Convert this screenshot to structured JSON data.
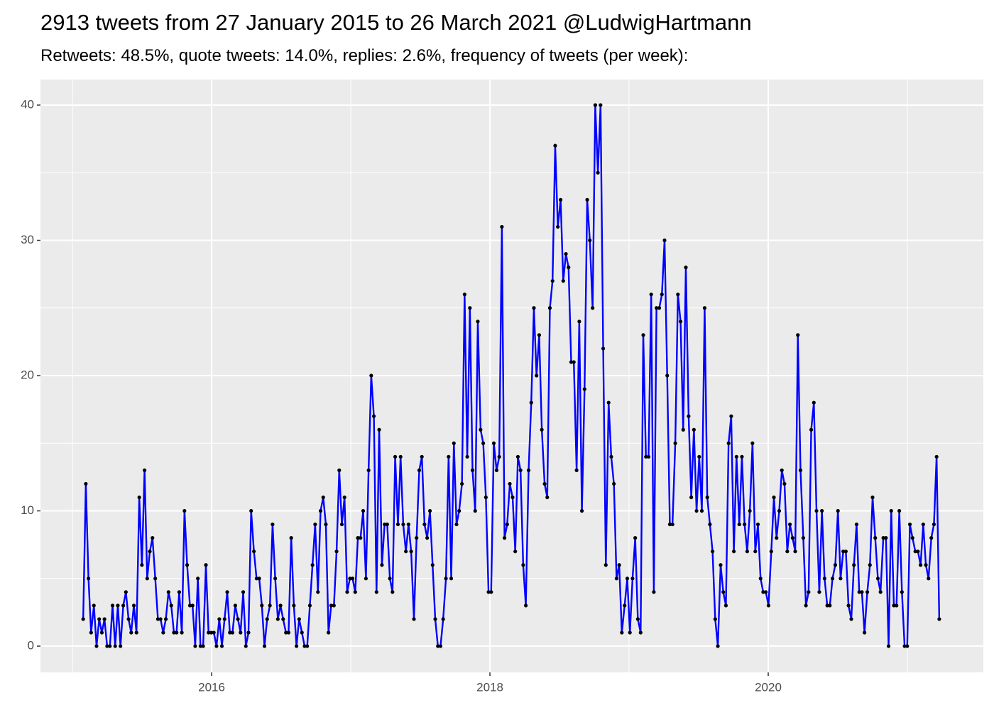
{
  "chart_data": {
    "type": "line",
    "title": "2913 tweets from 27 January 2015 to 26 March 2021 @LudwigHartmann",
    "subtitle": "Retweets: 48.5%, quote tweets: 14.0%, replies: 2.6%, frequency of tweets (per week):",
    "x": [
      2015.077,
      2015.096,
      2015.115,
      2015.134,
      2015.154,
      2015.173,
      2015.192,
      2015.211,
      2015.23,
      2015.249,
      2015.269,
      2015.288,
      2015.307,
      2015.326,
      2015.345,
      2015.365,
      2015.384,
      2015.403,
      2015.422,
      2015.441,
      2015.46,
      2015.48,
      2015.499,
      2015.518,
      2015.537,
      2015.556,
      2015.575,
      2015.595,
      2015.614,
      2015.633,
      2015.652,
      2015.671,
      2015.69,
      2015.71,
      2015.729,
      2015.748,
      2015.767,
      2015.786,
      2015.805,
      2015.824,
      2015.844,
      2015.863,
      2015.882,
      2015.901,
      2015.92,
      2015.939,
      2015.959,
      2015.978,
      2015.997,
      2016.016,
      2016.035,
      2016.055,
      2016.074,
      2016.093,
      2016.112,
      2016.131,
      2016.15,
      2016.17,
      2016.189,
      2016.208,
      2016.227,
      2016.246,
      2016.265,
      2016.284,
      2016.304,
      2016.323,
      2016.342,
      2016.361,
      2016.38,
      2016.399,
      2016.419,
      2016.438,
      2016.457,
      2016.476,
      2016.495,
      2016.514,
      2016.534,
      2016.553,
      2016.572,
      2016.591,
      2016.61,
      2016.629,
      2016.649,
      2016.668,
      2016.687,
      2016.706,
      2016.725,
      2016.744,
      2016.764,
      2016.783,
      2016.802,
      2016.821,
      2016.84,
      2016.859,
      2016.879,
      2016.898,
      2016.917,
      2016.936,
      2016.955,
      2016.974,
      2016.994,
      2017.013,
      2017.032,
      2017.051,
      2017.07,
      2017.089,
      2017.109,
      2017.128,
      2017.147,
      2017.166,
      2017.185,
      2017.204,
      2017.224,
      2017.243,
      2017.262,
      2017.281,
      2017.3,
      2017.319,
      2017.339,
      2017.358,
      2017.377,
      2017.396,
      2017.415,
      2017.434,
      2017.454,
      2017.473,
      2017.492,
      2017.511,
      2017.53,
      2017.549,
      2017.569,
      2017.588,
      2017.607,
      2017.626,
      2017.645,
      2017.664,
      2017.684,
      2017.703,
      2017.722,
      2017.741,
      2017.76,
      2017.779,
      2017.799,
      2017.818,
      2017.837,
      2017.856,
      2017.875,
      2017.894,
      2017.913,
      2017.933,
      2017.952,
      2017.971,
      2017.99,
      2018.009,
      2018.028,
      2018.048,
      2018.067,
      2018.086,
      2018.105,
      2018.124,
      2018.143,
      2018.163,
      2018.182,
      2018.201,
      2018.22,
      2018.239,
      2018.258,
      2018.278,
      2018.297,
      2018.316,
      2018.335,
      2018.354,
      2018.373,
      2018.393,
      2018.412,
      2018.431,
      2018.45,
      2018.469,
      2018.488,
      2018.508,
      2018.527,
      2018.546,
      2018.565,
      2018.584,
      2018.603,
      2018.623,
      2018.642,
      2018.661,
      2018.68,
      2018.699,
      2018.718,
      2018.738,
      2018.757,
      2018.776,
      2018.795,
      2018.814,
      2018.833,
      2018.853,
      2018.872,
      2018.891,
      2018.91,
      2018.929,
      2018.948,
      2018.968,
      2018.987,
      2019.006,
      2019.025,
      2019.044,
      2019.063,
      2019.083,
      2019.102,
      2019.121,
      2019.14,
      2019.159,
      2019.178,
      2019.197,
      2019.217,
      2019.236,
      2019.255,
      2019.274,
      2019.293,
      2019.312,
      2019.332,
      2019.351,
      2019.37,
      2019.389,
      2019.408,
      2019.428,
      2019.447,
      2019.466,
      2019.485,
      2019.504,
      2019.523,
      2019.543,
      2019.562,
      2019.581,
      2019.6,
      2019.619,
      2019.638,
      2019.658,
      2019.677,
      2019.696,
      2019.715,
      2019.734,
      2019.753,
      2019.772,
      2019.792,
      2019.811,
      2019.83,
      2019.849,
      2019.868,
      2019.887,
      2019.907,
      2019.926,
      2019.945,
      2019.964,
      2019.983,
      2020.002,
      2020.022,
      2020.041,
      2020.06,
      2020.079,
      2020.098,
      2020.117,
      2020.137,
      2020.156,
      2020.175,
      2020.194,
      2020.213,
      2020.232,
      2020.252,
      2020.271,
      2020.29,
      2020.309,
      2020.328,
      2020.347,
      2020.367,
      2020.386,
      2020.405,
      2020.424,
      2020.443,
      2020.462,
      2020.482,
      2020.501,
      2020.52,
      2020.539,
      2020.558,
      2020.577,
      2020.597,
      2020.616,
      2020.635,
      2020.654,
      2020.673,
      2020.692,
      2020.712,
      2020.731,
      2020.75,
      2020.769,
      2020.788,
      2020.807,
      2020.827,
      2020.846,
      2020.865,
      2020.884,
      2020.903,
      2020.922,
      2020.942,
      2020.961,
      2020.98,
      2020.999,
      2021.018,
      2021.037,
      2021.057,
      2021.076,
      2021.095,
      2021.114,
      2021.133,
      2021.152,
      2021.172,
      2021.191,
      2021.21,
      2021.229
    ],
    "values": [
      2,
      12,
      5,
      1,
      3,
      0,
      2,
      1,
      2,
      0,
      0,
      3,
      0,
      3,
      0,
      3,
      4,
      2,
      1,
      3,
      1,
      11,
      6,
      13,
      5,
      7,
      8,
      5,
      2,
      2,
      1,
      2,
      4,
      3,
      1,
      1,
      4,
      1,
      10,
      6,
      3,
      3,
      0,
      5,
      0,
      0,
      6,
      1,
      1,
      1,
      0,
      2,
      0,
      2,
      4,
      1,
      1,
      3,
      2,
      1,
      4,
      0,
      1,
      10,
      7,
      5,
      5,
      3,
      0,
      2,
      3,
      9,
      5,
      2,
      3,
      2,
      1,
      1,
      8,
      3,
      0,
      2,
      1,
      0,
      0,
      3,
      6,
      9,
      4,
      10,
      11,
      9,
      1,
      3,
      3,
      7,
      13,
      9,
      11,
      4,
      5,
      5,
      4,
      8,
      8,
      10,
      5,
      13,
      20,
      17,
      4,
      16,
      6,
      9,
      9,
      5,
      4,
      14,
      9,
      14,
      9,
      7,
      9,
      7,
      2,
      8,
      13,
      14,
      9,
      8,
      10,
      6,
      2,
      0,
      0,
      2,
      5,
      14,
      5,
      15,
      9,
      10,
      12,
      26,
      14,
      25,
      13,
      10,
      24,
      16,
      15,
      11,
      4,
      4,
      15,
      13,
      14,
      31,
      8,
      9,
      12,
      11,
      7,
      14,
      13,
      6,
      3,
      13,
      18,
      25,
      20,
      23,
      16,
      12,
      11,
      25,
      27,
      37,
      31,
      33,
      27,
      29,
      28,
      21,
      21,
      13,
      24,
      10,
      19,
      33,
      30,
      25,
      40,
      35,
      40,
      22,
      6,
      18,
      14,
      12,
      5,
      6,
      1,
      3,
      5,
      1,
      5,
      8,
      2,
      1,
      23,
      14,
      14,
      26,
      4,
      25,
      25,
      26,
      30,
      20,
      9,
      9,
      15,
      26,
      24,
      16,
      28,
      17,
      11,
      16,
      10,
      14,
      10,
      25,
      11,
      9,
      7,
      2,
      0,
      6,
      4,
      3,
      15,
      17,
      7,
      14,
      9,
      14,
      9,
      7,
      10,
      15,
      7,
      9,
      5,
      4,
      4,
      3,
      7,
      11,
      8,
      10,
      13,
      12,
      7,
      9,
      8,
      7,
      23,
      13,
      8,
      3,
      4,
      16,
      18,
      10,
      4,
      10,
      5,
      3,
      3,
      5,
      6,
      10,
      5,
      7,
      7,
      3,
      2,
      6,
      9,
      4,
      4,
      1,
      4,
      6,
      11,
      8,
      5,
      4,
      8,
      8,
      0,
      10,
      3,
      3,
      10,
      4,
      0,
      0,
      9,
      8,
      7,
      7,
      6,
      9,
      6,
      5,
      8,
      9,
      14,
      2
    ],
    "color": "#0000ff",
    "marker_color": "#000000",
    "xlim": [
      2014.77,
      2021.546
    ],
    "xticks": [
      2016,
      2018,
      2020
    ],
    "ylim": [
      -1.94,
      41.89
    ],
    "yticks": [
      0,
      10,
      20,
      30,
      40
    ],
    "grid": true
  }
}
